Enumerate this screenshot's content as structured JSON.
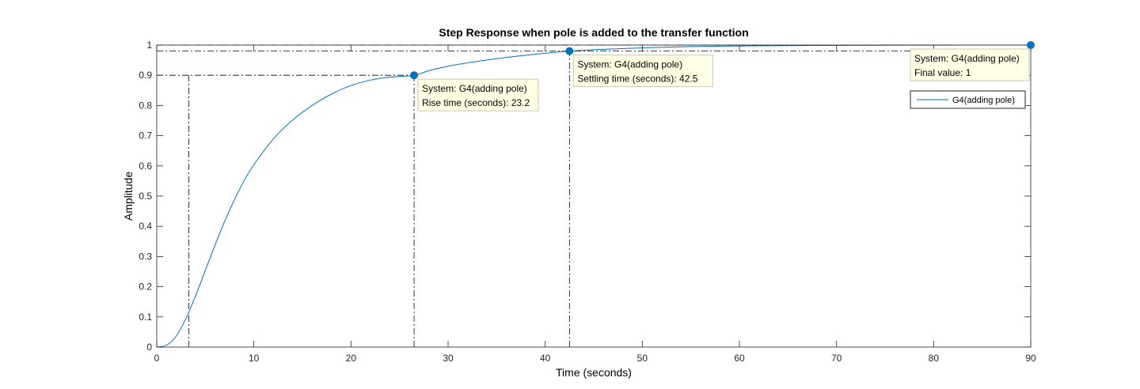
{
  "chart_data": {
    "type": "line",
    "title": "Step Response when pole is added to the transfer function",
    "xlabel": "Time (seconds)",
    "ylabel": "Amplitude",
    "xlim": [
      0,
      90
    ],
    "ylim": [
      0,
      1
    ],
    "xticks": [
      "0",
      "10",
      "20",
      "30",
      "40",
      "50",
      "60",
      "70",
      "80",
      "90"
    ],
    "yticks": [
      "0",
      "0.1",
      "0.2",
      "0.3",
      "0.4",
      "0.5",
      "0.6",
      "0.7",
      "0.8",
      "0.9",
      "1"
    ],
    "grid": false,
    "legend_position": "top-right",
    "series": [
      {
        "name": "G4(adding pole)",
        "color": "#0072BD",
        "x": [
          0,
          1,
          2,
          3,
          4,
          5,
          6,
          7,
          8,
          9,
          10,
          12,
          14,
          16,
          18,
          20,
          22,
          24,
          26.5,
          28,
          30,
          33,
          36,
          39,
          42.5,
          46,
          50,
          55,
          60,
          65,
          70,
          75,
          80,
          85,
          90
        ],
        "y": [
          0,
          0.006,
          0.036,
          0.094,
          0.17,
          0.254,
          0.338,
          0.417,
          0.488,
          0.551,
          0.604,
          0.689,
          0.752,
          0.8,
          0.838,
          0.866,
          0.884,
          0.894,
          0.9,
          0.915,
          0.93,
          0.946,
          0.959,
          0.97,
          0.98,
          0.986,
          0.991,
          0.995,
          0.997,
          0.998,
          0.999,
          0.9995,
          0.9998,
          0.9999,
          1.0
        ]
      }
    ],
    "reference_lines": [
      {
        "orientation": "horizontal",
        "y": 0.9,
        "x_end": 26.5
      },
      {
        "orientation": "horizontal",
        "y": 0.98,
        "x_end": 90
      },
      {
        "orientation": "horizontal",
        "y": 1.0,
        "x_end": 90
      },
      {
        "orientation": "vertical",
        "x": 3.3,
        "y_end": 0.9
      },
      {
        "orientation": "vertical",
        "x": 26.5,
        "y_end": 0.9
      },
      {
        "orientation": "vertical",
        "x": 42.5,
        "y_end": 0.98
      }
    ],
    "annotations": [
      {
        "point": [
          26.5,
          0.9
        ],
        "lines": [
          "System: G4(adding pole)",
          "Rise time (seconds): 23.2"
        ]
      },
      {
        "point": [
          42.5,
          0.98
        ],
        "lines": [
          "System: G4(adding pole)",
          "Settling time (seconds): 42.5"
        ]
      },
      {
        "point": [
          90,
          1.0
        ],
        "lines": [
          "System: G4(adding pole)",
          "Final value: 1"
        ]
      }
    ]
  },
  "colors": {
    "line": "#0072BD",
    "marker": "#0072BD",
    "datatip_bg": "#FFFFE6",
    "datatip_border": "#C8C8B4",
    "axis": "#262626"
  }
}
